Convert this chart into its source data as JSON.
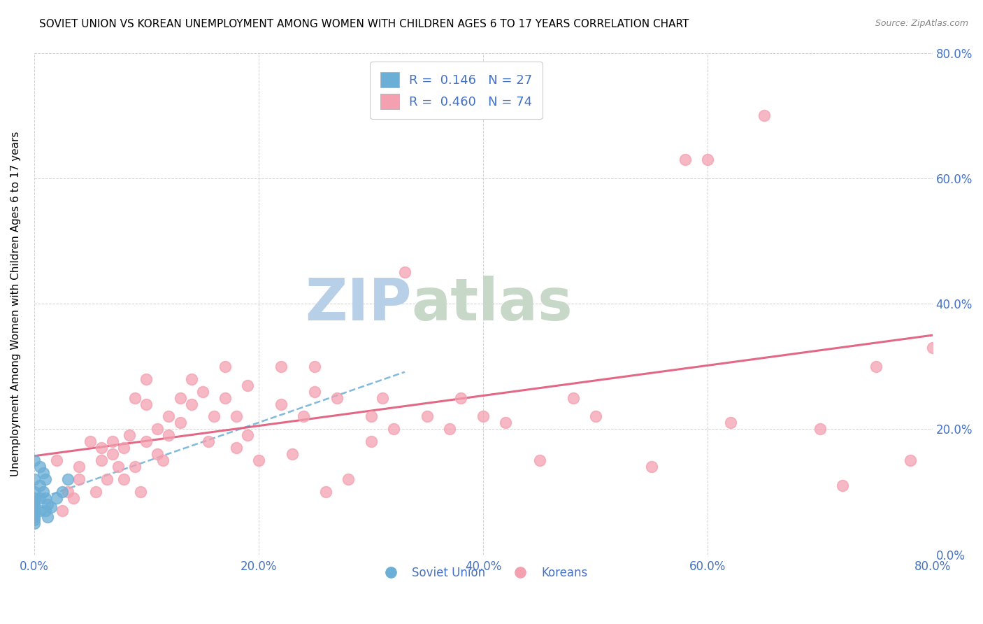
{
  "title": "SOVIET UNION VS KOREAN UNEMPLOYMENT AMONG WOMEN WITH CHILDREN AGES 6 TO 17 YEARS CORRELATION CHART",
  "source": "Source: ZipAtlas.com",
  "ylabel": "Unemployment Among Women with Children Ages 6 to 17 years",
  "xlim": [
    0,
    0.8
  ],
  "ylim": [
    0,
    0.8
  ],
  "xticks": [
    0.0,
    0.2,
    0.4,
    0.6,
    0.8
  ],
  "yticks": [
    0.0,
    0.2,
    0.4,
    0.6,
    0.8
  ],
  "xtick_labels": [
    "0.0%",
    "20.0%",
    "40.0%",
    "60.0%",
    "80.0%"
  ],
  "ytick_labels": [
    "0.0%",
    "20.0%",
    "40.0%",
    "60.0%",
    "80.0%"
  ],
  "soviet_color": "#6baed6",
  "korean_color": "#f4a0b0",
  "soviet_R": 0.146,
  "soviet_N": 27,
  "korean_R": 0.46,
  "korean_N": 74,
  "legend_R_color": "#4472c4",
  "watermark_zip": "ZIP",
  "watermark_atlas": "atlas",
  "watermark_color_zip": "#b8cfe8",
  "watermark_color_atlas": "#c8d8c8",
  "soviet_x": [
    0.0,
    0.0,
    0.0,
    0.0,
    0.0,
    0.0,
    0.0,
    0.0,
    0.0,
    0.0,
    0.0,
    0.0,
    0.005,
    0.005,
    0.005,
    0.005,
    0.008,
    0.008,
    0.01,
    0.01,
    0.01,
    0.012,
    0.012,
    0.015,
    0.02,
    0.025,
    0.03
  ],
  "soviet_y": [
    0.15,
    0.12,
    0.1,
    0.09,
    0.085,
    0.08,
    0.075,
    0.07,
    0.065,
    0.06,
    0.055,
    0.05,
    0.14,
    0.11,
    0.09,
    0.07,
    0.13,
    0.1,
    0.12,
    0.09,
    0.07,
    0.08,
    0.06,
    0.075,
    0.09,
    0.1,
    0.12
  ],
  "korean_x": [
    0.02,
    0.025,
    0.03,
    0.035,
    0.04,
    0.04,
    0.05,
    0.055,
    0.06,
    0.06,
    0.065,
    0.07,
    0.07,
    0.075,
    0.08,
    0.08,
    0.085,
    0.09,
    0.09,
    0.095,
    0.1,
    0.1,
    0.1,
    0.11,
    0.11,
    0.115,
    0.12,
    0.12,
    0.13,
    0.13,
    0.14,
    0.14,
    0.15,
    0.155,
    0.16,
    0.17,
    0.17,
    0.18,
    0.18,
    0.19,
    0.19,
    0.2,
    0.22,
    0.22,
    0.23,
    0.24,
    0.25,
    0.25,
    0.26,
    0.27,
    0.28,
    0.3,
    0.3,
    0.31,
    0.32,
    0.33,
    0.35,
    0.37,
    0.38,
    0.4,
    0.42,
    0.45,
    0.48,
    0.5,
    0.55,
    0.58,
    0.6,
    0.62,
    0.65,
    0.7,
    0.72,
    0.75,
    0.78,
    0.8
  ],
  "korean_y": [
    0.15,
    0.07,
    0.1,
    0.09,
    0.14,
    0.12,
    0.18,
    0.1,
    0.17,
    0.15,
    0.12,
    0.18,
    0.16,
    0.14,
    0.17,
    0.12,
    0.19,
    0.25,
    0.14,
    0.1,
    0.28,
    0.24,
    0.18,
    0.2,
    0.16,
    0.15,
    0.22,
    0.19,
    0.25,
    0.21,
    0.28,
    0.24,
    0.26,
    0.18,
    0.22,
    0.25,
    0.3,
    0.17,
    0.22,
    0.27,
    0.19,
    0.15,
    0.3,
    0.24,
    0.16,
    0.22,
    0.3,
    0.26,
    0.1,
    0.25,
    0.12,
    0.22,
    0.18,
    0.25,
    0.2,
    0.45,
    0.22,
    0.2,
    0.25,
    0.22,
    0.21,
    0.15,
    0.25,
    0.22,
    0.14,
    0.63,
    0.63,
    0.21,
    0.7,
    0.2,
    0.11,
    0.3,
    0.15,
    0.33
  ]
}
